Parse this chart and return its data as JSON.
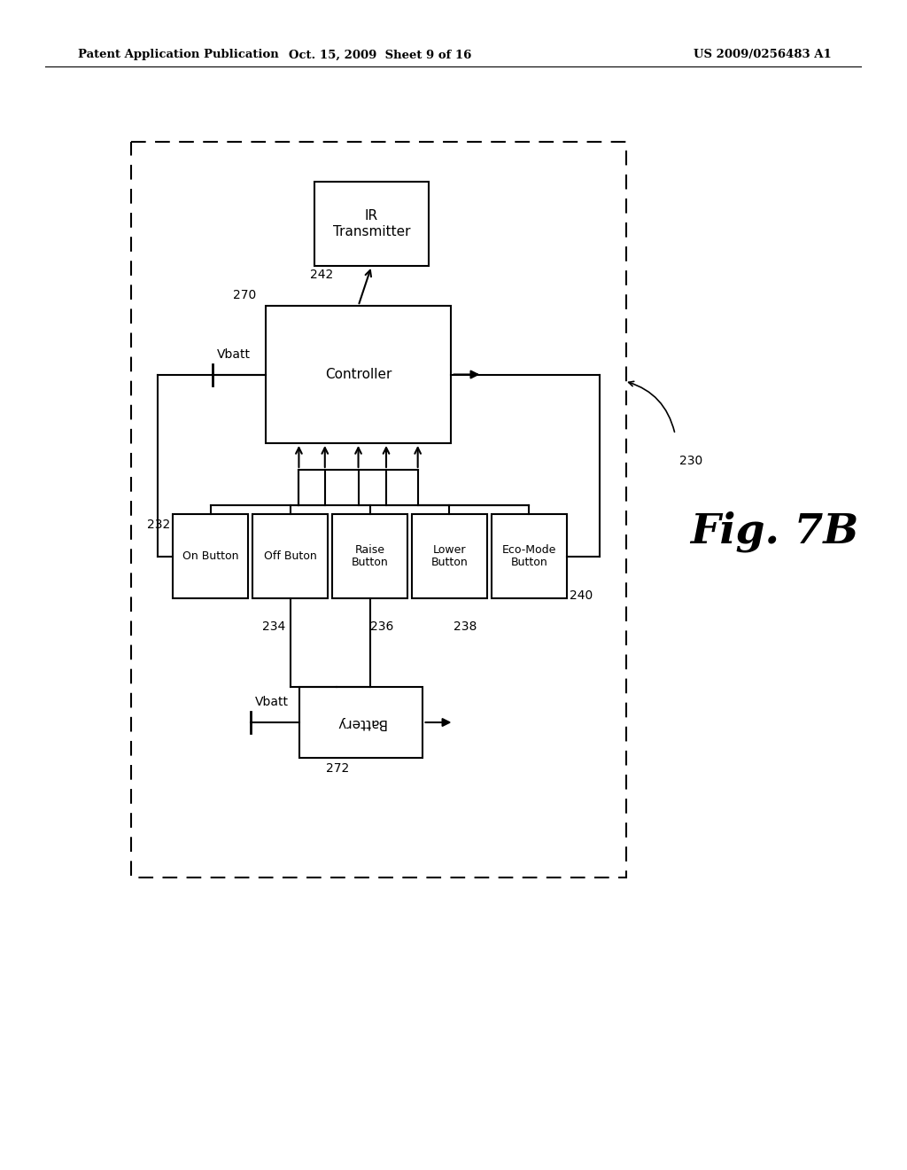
{
  "bg_color": "#ffffff",
  "header_left": "Patent Application Publication",
  "header_center": "Oct. 15, 2009  Sheet 9 of 16",
  "header_right": "US 2009/0256483 A1",
  "fig_label": "Fig. 7B",
  "fig_label_ref": "230",
  "controller_label": "Controller",
  "controller_ref": "270",
  "ir_label": "IR\nTransmitter",
  "ir_ref": "242",
  "battery_label": "Battery",
  "battery_ref": "272",
  "vbatt_controller": "Vbatt",
  "vbatt_battery": "Vbatt",
  "button_labels": [
    "On Button",
    "Off Buton",
    "Raise\nButton",
    "Lower\nButton",
    "Eco-Mode\nButton"
  ],
  "button_refs": [
    "232",
    "234",
    "236",
    "238",
    "240"
  ]
}
